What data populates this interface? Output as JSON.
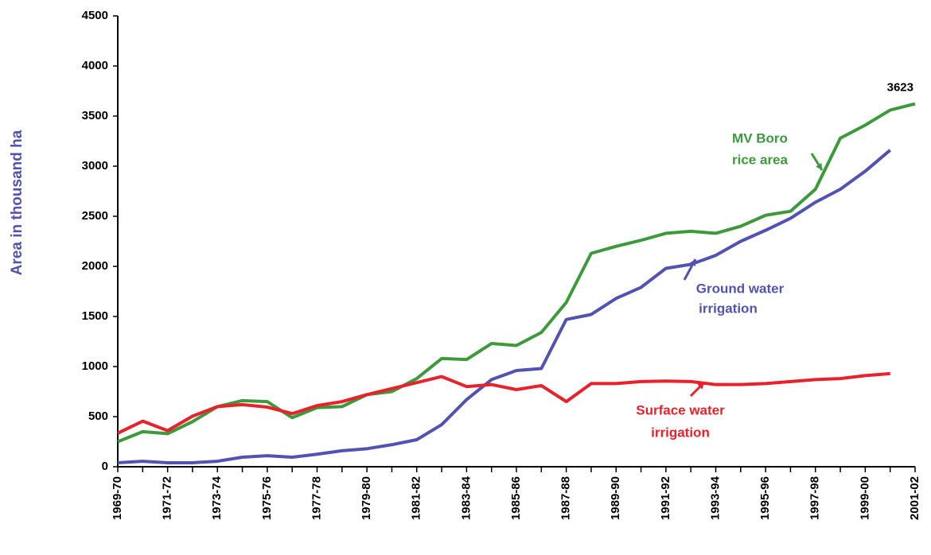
{
  "chart_data": {
    "type": "line",
    "y_label": "Area in thousand ha",
    "categories": [
      "1969-70",
      null,
      "1971-72",
      null,
      "1973-74",
      null,
      "1975-76",
      null,
      "1977-78",
      null,
      "1979-80",
      null,
      "1981-82",
      null,
      "1983-84",
      null,
      "1985-86",
      null,
      "1987-88",
      null,
      "1989-90",
      null,
      "1991-92",
      null,
      "1993-94",
      null,
      "1995-96",
      null,
      "1997-98",
      null,
      "1999-00",
      null,
      "2001-02"
    ],
    "ylim": [
      0,
      4500
    ],
    "yticks": [
      0,
      500,
      1000,
      1500,
      2000,
      2500,
      3000,
      3500,
      4000,
      4500
    ],
    "series": [
      {
        "label_lines": [
          "MV Boro",
          "rice area"
        ],
        "color": "#3c9a3c",
        "values": [
          250,
          350,
          330,
          450,
          600,
          660,
          650,
          490,
          590,
          600,
          720,
          750,
          880,
          1080,
          1070,
          1230,
          1210,
          1340,
          1640,
          2130,
          2200,
          2260,
          2330,
          2350,
          2330,
          2400,
          2510,
          2550,
          2770,
          3280,
          3410,
          3560,
          3623
        ]
      },
      {
        "label_lines": [
          "Ground water",
          "irrigation"
        ],
        "color": "#5252b2",
        "values": [
          40,
          55,
          40,
          40,
          55,
          95,
          110,
          95,
          125,
          160,
          180,
          220,
          270,
          420,
          670,
          870,
          960,
          980,
          1470,
          1520,
          1680,
          1790,
          1980,
          2020,
          2110,
          2250,
          2360,
          2480,
          2640,
          2770,
          2950,
          3160,
          null
        ]
      },
      {
        "label_lines": [
          "Surface water",
          "irrigation"
        ],
        "color": "#e8212b",
        "values": [
          335,
          455,
          360,
          505,
          600,
          620,
          595,
          530,
          610,
          650,
          720,
          780,
          840,
          900,
          800,
          820,
          770,
          810,
          650,
          830,
          830,
          850,
          855,
          850,
          820,
          820,
          830,
          850,
          870,
          880,
          910,
          930,
          null
        ]
      }
    ]
  }
}
